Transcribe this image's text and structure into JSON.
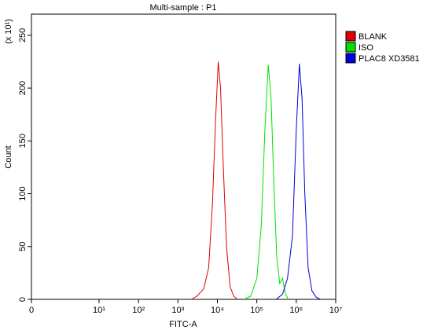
{
  "chart_data": {
    "type": "line",
    "title": "Multi-sample : P1",
    "x_label": "FITC-A",
    "y_label": "Count",
    "y_scale_note": "(x 10¹)",
    "xscale": "biexponential",
    "xlim": [
      0,
      10000000
    ],
    "ylim": [
      0,
      270
    ],
    "xticks": [
      0,
      {
        "value": 10,
        "label": "10¹"
      },
      {
        "value": 100,
        "label": "10²"
      },
      {
        "value": 1000,
        "label": "10³"
      },
      {
        "value": 10000,
        "label": "10⁴"
      },
      {
        "value": 100000,
        "label": "10⁵"
      },
      {
        "value": 1000000,
        "label": "10⁶"
      },
      {
        "value": 10000000,
        "label": "10⁷"
      }
    ],
    "yticks": [
      0,
      50,
      100,
      150,
      200,
      250
    ],
    "series": [
      {
        "name": "BLANK",
        "color": "#e00000",
        "x": [
          2200,
          3000,
          4500,
          6000,
          7500,
          9000,
          10500,
          12000,
          14000,
          17000,
          21000,
          26000,
          32000
        ],
        "values": [
          0,
          3,
          10,
          30,
          90,
          170,
          225,
          200,
          130,
          50,
          12,
          3,
          0
        ]
      },
      {
        "name": "ISO",
        "color": "#00e000",
        "x": [
          47000,
          70000,
          100000,
          130000,
          160000,
          195000,
          230000,
          270000,
          320000,
          380000,
          450000,
          530000,
          630000
        ],
        "values": [
          0,
          3,
          20,
          70,
          160,
          222,
          190,
          110,
          40,
          15,
          20,
          5,
          0
        ]
      },
      {
        "name": "PLAC8 XD3581",
        "color": "#0000e0",
        "x": [
          310000,
          450000,
          600000,
          800000,
          1000000,
          1200000,
          1400000,
          1650000,
          2000000,
          2500000,
          3200000,
          4100000
        ],
        "values": [
          0,
          5,
          20,
          60,
          160,
          223,
          190,
          100,
          30,
          8,
          2,
          0
        ]
      }
    ]
  }
}
